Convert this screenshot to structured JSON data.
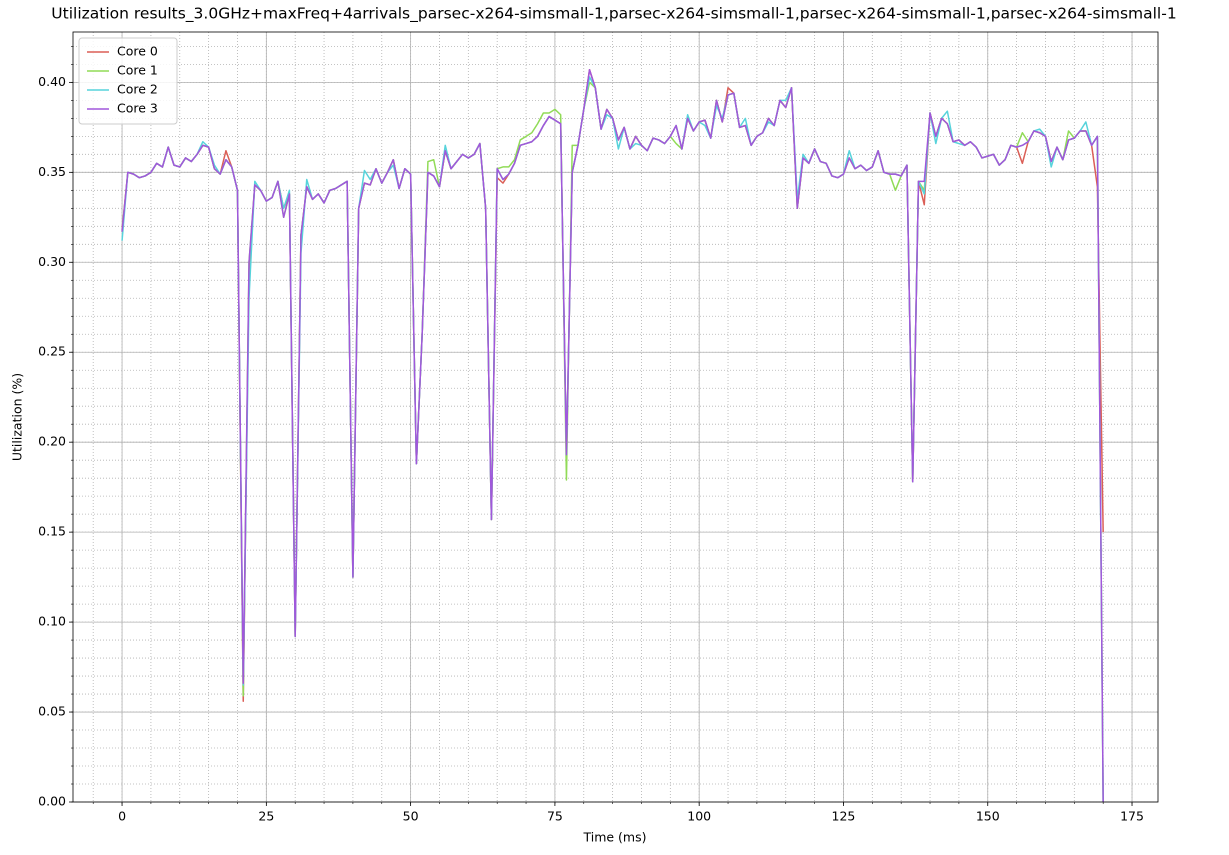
{
  "chart_data": {
    "type": "line",
    "title": "Utilization results_3.0GHz+maxFreq+4arrivals_parsec-x264-simsmall-1,parsec-x264-simsmall-1,parsec-x264-simsmall-1,parsec-x264-simsmall-1",
    "xlabel": "Time (ms)",
    "ylabel": "Utilization (%)",
    "xlim": [
      -8.5,
      179.5
    ],
    "ylim": [
      0,
      0.428
    ],
    "xticks": [
      0,
      25,
      50,
      75,
      100,
      125,
      150,
      175
    ],
    "yticks": [
      {
        "value": 0,
        "label": "0.00"
      },
      {
        "value": 0.05,
        "label": "0.05"
      },
      {
        "value": 0.1,
        "label": "0.10"
      },
      {
        "value": 0.15,
        "label": "0.15"
      },
      {
        "value": 0.2,
        "label": "0.20"
      },
      {
        "value": 0.25,
        "label": "0.25"
      },
      {
        "value": 0.3,
        "label": "0.30"
      },
      {
        "value": 0.35,
        "label": "0.35"
      },
      {
        "value": 0.4,
        "label": "0.40"
      }
    ],
    "xminorticks": [
      -5,
      0,
      5,
      10,
      15,
      20,
      25,
      30,
      35,
      40,
      45,
      50,
      55,
      60,
      65,
      70,
      75,
      80,
      85,
      90,
      95,
      100,
      105,
      110,
      115,
      120,
      125,
      130,
      135,
      140,
      145,
      150,
      155,
      160,
      165,
      170,
      175
    ],
    "yminorticks": [
      0,
      0.01,
      0.02,
      0.03,
      0.04,
      0.05,
      0.06,
      0.07,
      0.08,
      0.09,
      0.1,
      0.11,
      0.12,
      0.13,
      0.14,
      0.15,
      0.16,
      0.17,
      0.18,
      0.19,
      0.2,
      0.21,
      0.22,
      0.23,
      0.24,
      0.25,
      0.26,
      0.27,
      0.28,
      0.29,
      0.3,
      0.31,
      0.32,
      0.33,
      0.34,
      0.35,
      0.36,
      0.37,
      0.38,
      0.39,
      0.4,
      0.41,
      0.42
    ],
    "grid": true,
    "minor_grid": true,
    "legend": "upper left",
    "x": [
      0,
      1,
      2,
      3,
      4,
      5,
      6,
      7,
      8,
      9,
      10,
      11,
      12,
      13,
      14,
      15,
      16,
      17,
      18,
      19,
      20,
      21,
      22,
      23,
      24,
      25,
      26,
      27,
      28,
      29,
      30,
      31,
      32,
      33,
      34,
      35,
      36,
      37,
      38,
      39,
      40,
      41,
      42,
      43,
      44,
      45,
      46,
      47,
      48,
      49,
      50,
      51,
      52,
      53,
      54,
      55,
      56,
      57,
      58,
      59,
      60,
      61,
      62,
      63,
      64,
      65,
      66,
      67,
      68,
      69,
      70,
      71,
      72,
      73,
      74,
      75,
      76,
      77,
      78,
      79,
      80,
      81,
      82,
      83,
      84,
      85,
      86,
      87,
      88,
      89,
      90,
      91,
      92,
      93,
      94,
      95,
      96,
      97,
      98,
      99,
      100,
      101,
      102,
      103,
      104,
      105,
      106,
      107,
      108,
      109,
      110,
      111,
      112,
      113,
      114,
      115,
      116,
      117,
      118,
      119,
      120,
      121,
      122,
      123,
      124,
      125,
      126,
      127,
      128,
      129,
      130,
      131,
      132,
      133,
      134,
      135,
      136,
      137,
      138,
      139,
      140,
      141,
      142,
      143,
      144,
      145,
      146,
      147,
      148,
      149,
      150,
      151,
      152,
      153,
      154,
      155,
      156,
      157,
      158,
      159,
      160,
      161,
      162,
      163,
      164,
      165,
      166,
      167,
      168,
      169,
      170
    ],
    "series": [
      {
        "name": "Core 0",
        "color": "#db5f57",
        "values": [
          0.318,
          0.35,
          0.349,
          0.347,
          0.348,
          0.35,
          0.355,
          0.353,
          0.364,
          0.354,
          0.353,
          0.358,
          0.356,
          0.36,
          0.365,
          0.364,
          0.352,
          0.349,
          0.362,
          0.353,
          0.34,
          0.056,
          0.295,
          0.343,
          0.34,
          0.334,
          0.336,
          0.345,
          0.33,
          0.338,
          0.092,
          0.315,
          0.342,
          0.335,
          0.338,
          0.333,
          0.34,
          0.341,
          0.343,
          0.345,
          0.125,
          0.33,
          0.344,
          0.343,
          0.352,
          0.344,
          0.35,
          0.357,
          0.341,
          0.352,
          0.349,
          0.188,
          0.26,
          0.35,
          0.348,
          0.342,
          0.362,
          0.352,
          0.356,
          0.36,
          0.358,
          0.36,
          0.366,
          0.33,
          0.157,
          0.347,
          0.344,
          0.349,
          0.355,
          0.365,
          0.366,
          0.367,
          0.37,
          0.376,
          0.381,
          0.379,
          0.377,
          0.193,
          0.35,
          0.365,
          0.385,
          0.407,
          0.397,
          0.374,
          0.385,
          0.38,
          0.368,
          0.375,
          0.363,
          0.37,
          0.365,
          0.362,
          0.369,
          0.368,
          0.366,
          0.37,
          0.376,
          0.363,
          0.38,
          0.373,
          0.378,
          0.379,
          0.369,
          0.39,
          0.378,
          0.397,
          0.394,
          0.375,
          0.376,
          0.365,
          0.37,
          0.372,
          0.38,
          0.376,
          0.39,
          0.386,
          0.397,
          0.33,
          0.358,
          0.355,
          0.363,
          0.356,
          0.355,
          0.348,
          0.347,
          0.349,
          0.358,
          0.352,
          0.354,
          0.351,
          0.353,
          0.362,
          0.35,
          0.349,
          0.349,
          0.348,
          0.354,
          0.178,
          0.345,
          0.332,
          0.383,
          0.37,
          0.38,
          0.377,
          0.367,
          0.368,
          0.365,
          0.367,
          0.364,
          0.358,
          0.359,
          0.36,
          0.354,
          0.357,
          0.365,
          0.364,
          0.355,
          0.367,
          0.373,
          0.372,
          0.37,
          0.356,
          0.364,
          0.357,
          0.368,
          0.369,
          0.373,
          0.373,
          0.365,
          0.342,
          0.15
        ]
      },
      {
        "name": "Core 1",
        "color": "#91db57",
        "values": [
          0.317,
          0.35,
          0.349,
          0.347,
          0.348,
          0.35,
          0.355,
          0.353,
          0.364,
          0.354,
          0.353,
          0.358,
          0.356,
          0.36,
          0.365,
          0.364,
          0.352,
          0.349,
          0.357,
          0.353,
          0.34,
          0.059,
          0.3,
          0.343,
          0.34,
          0.334,
          0.336,
          0.345,
          0.325,
          0.338,
          0.092,
          0.315,
          0.342,
          0.335,
          0.338,
          0.333,
          0.34,
          0.341,
          0.343,
          0.345,
          0.125,
          0.33,
          0.344,
          0.343,
          0.352,
          0.344,
          0.35,
          0.357,
          0.341,
          0.352,
          0.349,
          0.188,
          0.26,
          0.356,
          0.357,
          0.342,
          0.362,
          0.352,
          0.356,
          0.36,
          0.358,
          0.36,
          0.366,
          0.33,
          0.157,
          0.352,
          0.353,
          0.353,
          0.357,
          0.368,
          0.37,
          0.372,
          0.377,
          0.383,
          0.383,
          0.385,
          0.382,
          0.179,
          0.365,
          0.365,
          0.385,
          0.4,
          0.397,
          0.374,
          0.385,
          0.38,
          0.368,
          0.375,
          0.363,
          0.37,
          0.365,
          0.362,
          0.369,
          0.368,
          0.366,
          0.37,
          0.366,
          0.363,
          0.38,
          0.373,
          0.378,
          0.379,
          0.369,
          0.39,
          0.378,
          0.393,
          0.394,
          0.375,
          0.376,
          0.365,
          0.37,
          0.372,
          0.38,
          0.376,
          0.39,
          0.386,
          0.397,
          0.33,
          0.358,
          0.355,
          0.363,
          0.356,
          0.355,
          0.348,
          0.347,
          0.349,
          0.358,
          0.352,
          0.354,
          0.351,
          0.353,
          0.362,
          0.35,
          0.349,
          0.34,
          0.348,
          0.354,
          0.178,
          0.345,
          0.34,
          0.383,
          0.37,
          0.38,
          0.377,
          0.367,
          0.368,
          0.365,
          0.367,
          0.364,
          0.358,
          0.359,
          0.36,
          0.354,
          0.357,
          0.365,
          0.364,
          0.372,
          0.367,
          0.373,
          0.372,
          0.37,
          0.356,
          0.364,
          0.357,
          0.373,
          0.369,
          0.373,
          0.373,
          0.365,
          0.37,
          0.0
        ]
      },
      {
        "name": "Core 2",
        "color": "#57d3db",
        "values": [
          0.312,
          0.35,
          0.349,
          0.347,
          0.348,
          0.35,
          0.355,
          0.353,
          0.364,
          0.354,
          0.353,
          0.358,
          0.356,
          0.36,
          0.367,
          0.364,
          0.354,
          0.349,
          0.357,
          0.353,
          0.34,
          0.065,
          0.28,
          0.345,
          0.34,
          0.334,
          0.336,
          0.345,
          0.33,
          0.34,
          0.092,
          0.305,
          0.346,
          0.335,
          0.338,
          0.333,
          0.34,
          0.341,
          0.343,
          0.345,
          0.125,
          0.33,
          0.351,
          0.346,
          0.352,
          0.344,
          0.35,
          0.354,
          0.341,
          0.352,
          0.349,
          0.188,
          0.26,
          0.35,
          0.348,
          0.342,
          0.365,
          0.352,
          0.356,
          0.36,
          0.358,
          0.36,
          0.366,
          0.33,
          0.157,
          0.352,
          0.346,
          0.349,
          0.355,
          0.365,
          0.366,
          0.367,
          0.37,
          0.376,
          0.381,
          0.379,
          0.377,
          0.193,
          0.35,
          0.365,
          0.385,
          0.403,
          0.397,
          0.374,
          0.382,
          0.38,
          0.363,
          0.375,
          0.363,
          0.366,
          0.365,
          0.362,
          0.369,
          0.368,
          0.366,
          0.37,
          0.376,
          0.363,
          0.382,
          0.373,
          0.378,
          0.376,
          0.369,
          0.387,
          0.38,
          0.393,
          0.394,
          0.375,
          0.38,
          0.365,
          0.37,
          0.372,
          0.378,
          0.376,
          0.39,
          0.39,
          0.397,
          0.335,
          0.36,
          0.355,
          0.363,
          0.356,
          0.355,
          0.348,
          0.347,
          0.349,
          0.362,
          0.352,
          0.354,
          0.351,
          0.353,
          0.362,
          0.35,
          0.349,
          0.349,
          0.348,
          0.354,
          0.178,
          0.345,
          0.338,
          0.383,
          0.366,
          0.38,
          0.384,
          0.367,
          0.366,
          0.365,
          0.367,
          0.364,
          0.358,
          0.359,
          0.36,
          0.354,
          0.357,
          0.365,
          0.364,
          0.365,
          0.367,
          0.373,
          0.374,
          0.37,
          0.353,
          0.364,
          0.357,
          0.368,
          0.369,
          0.373,
          0.378,
          0.365,
          0.37,
          0.0
        ]
      },
      {
        "name": "Core 3",
        "color": "#a157db",
        "values": [
          0.317,
          0.35,
          0.349,
          0.347,
          0.348,
          0.35,
          0.355,
          0.353,
          0.364,
          0.354,
          0.353,
          0.358,
          0.356,
          0.36,
          0.365,
          0.364,
          0.352,
          0.349,
          0.357,
          0.353,
          0.34,
          0.066,
          0.3,
          0.343,
          0.34,
          0.334,
          0.336,
          0.345,
          0.325,
          0.338,
          0.092,
          0.315,
          0.342,
          0.335,
          0.338,
          0.333,
          0.34,
          0.341,
          0.343,
          0.345,
          0.125,
          0.33,
          0.344,
          0.343,
          0.352,
          0.344,
          0.35,
          0.357,
          0.341,
          0.352,
          0.349,
          0.188,
          0.26,
          0.35,
          0.348,
          0.342,
          0.362,
          0.352,
          0.356,
          0.36,
          0.358,
          0.36,
          0.366,
          0.33,
          0.157,
          0.352,
          0.346,
          0.349,
          0.355,
          0.365,
          0.366,
          0.367,
          0.37,
          0.376,
          0.381,
          0.379,
          0.377,
          0.193,
          0.35,
          0.365,
          0.385,
          0.407,
          0.397,
          0.374,
          0.385,
          0.38,
          0.368,
          0.375,
          0.363,
          0.37,
          0.365,
          0.362,
          0.369,
          0.368,
          0.366,
          0.37,
          0.376,
          0.363,
          0.38,
          0.373,
          0.378,
          0.379,
          0.369,
          0.39,
          0.378,
          0.393,
          0.394,
          0.375,
          0.376,
          0.365,
          0.37,
          0.372,
          0.38,
          0.376,
          0.39,
          0.386,
          0.397,
          0.33,
          0.358,
          0.355,
          0.363,
          0.356,
          0.355,
          0.348,
          0.347,
          0.349,
          0.358,
          0.352,
          0.354,
          0.351,
          0.353,
          0.362,
          0.35,
          0.349,
          0.349,
          0.348,
          0.354,
          0.178,
          0.345,
          0.345,
          0.383,
          0.37,
          0.38,
          0.377,
          0.367,
          0.368,
          0.365,
          0.367,
          0.364,
          0.358,
          0.359,
          0.36,
          0.354,
          0.357,
          0.365,
          0.364,
          0.365,
          0.367,
          0.373,
          0.372,
          0.37,
          0.356,
          0.364,
          0.357,
          0.368,
          0.369,
          0.373,
          0.373,
          0.365,
          0.37,
          0.0
        ]
      }
    ]
  }
}
